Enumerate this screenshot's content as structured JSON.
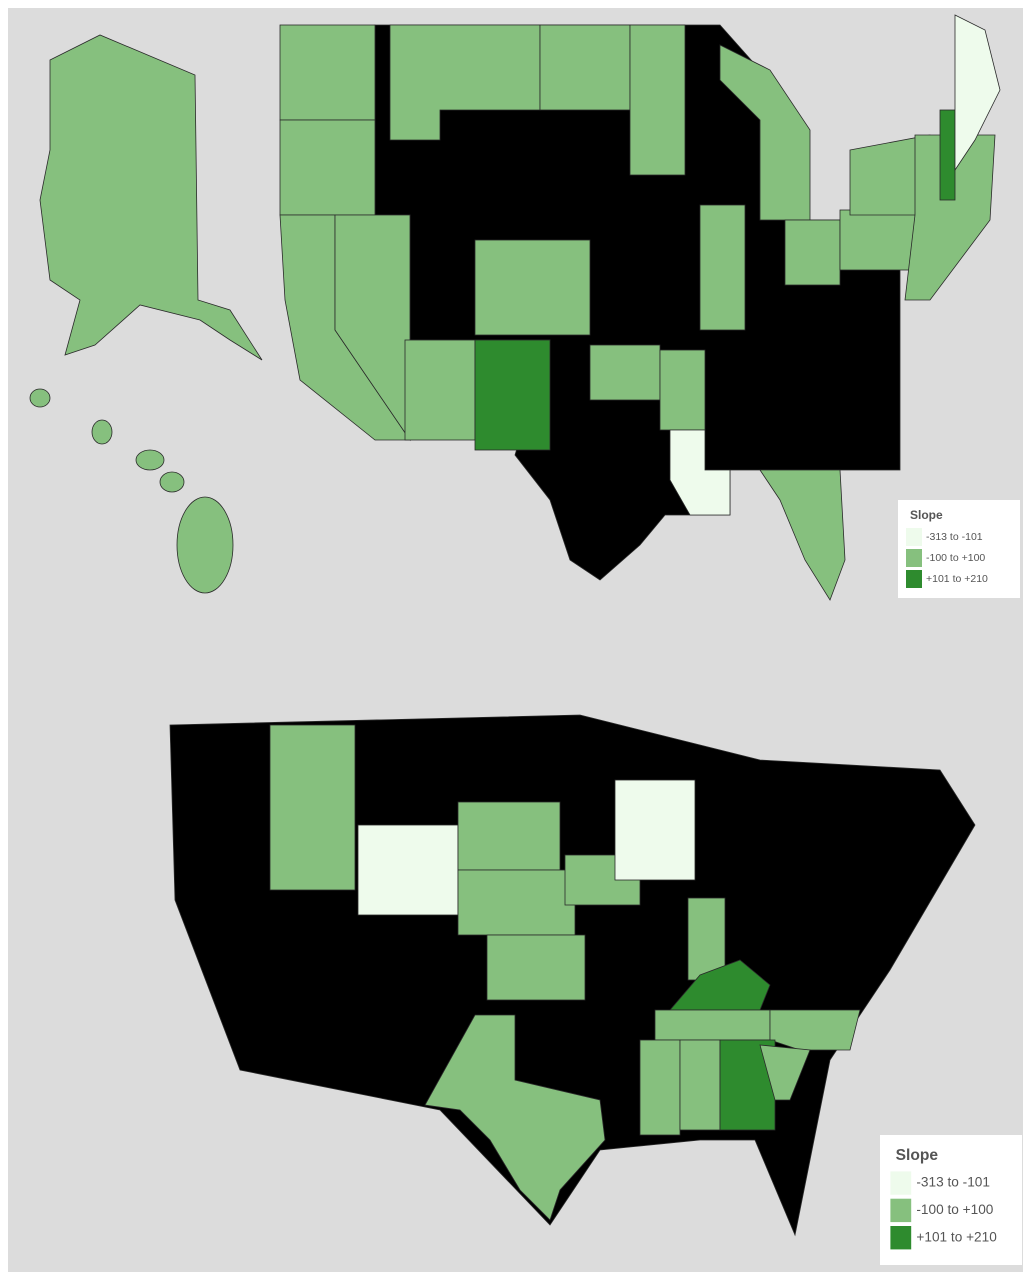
{
  "legends": [
    {
      "title": "Slope",
      "items": [
        {
          "label": "-313 to -101",
          "color": "#eefbec"
        },
        {
          "label": "-100 to +100",
          "color": "#86c07e"
        },
        {
          "label": "+101 to +210",
          "color": "#2e8b2e"
        }
      ]
    },
    {
      "title": "Slope",
      "items": [
        {
          "label": "-313 to -101",
          "color": "#eefbec"
        },
        {
          "label": "-100 to +100",
          "color": "#86c07e"
        },
        {
          "label": "+101 to +210",
          "color": "#2e8b2e"
        }
      ]
    }
  ]
}
